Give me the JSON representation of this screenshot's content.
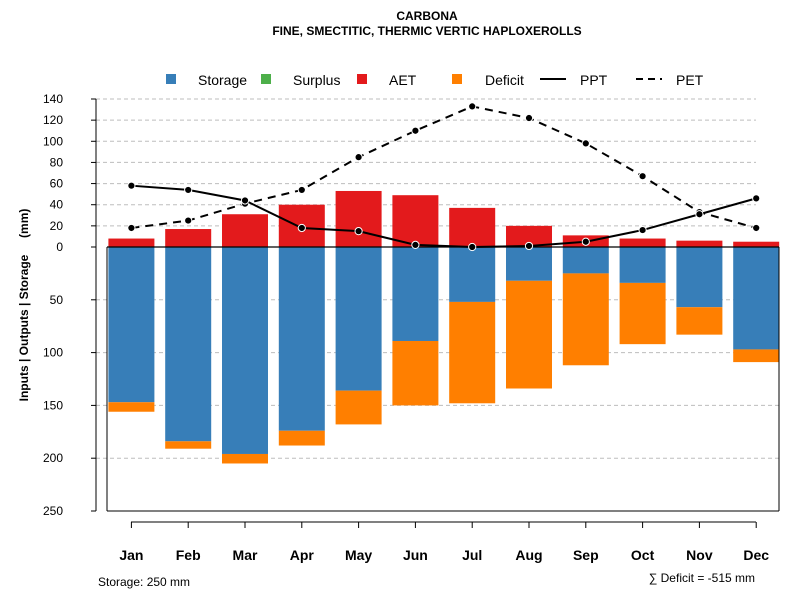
{
  "chart_data": {
    "type": "bar",
    "title": "CARBONA",
    "subtitle": "FINE, SMECTITIC, THERMIC VERTIC HAPLOXEROLLS",
    "ylabel": "Inputs | Outputs | Storage     (mm)",
    "categories": [
      "Jan",
      "Feb",
      "Mar",
      "Apr",
      "May",
      "Jun",
      "Jul",
      "Aug",
      "Sep",
      "Oct",
      "Nov",
      "Dec"
    ],
    "upper_ticks": [
      "140",
      "120",
      "100",
      "80",
      "60",
      "40",
      "20",
      "0"
    ],
    "lower_ticks": [
      "50",
      "100",
      "150",
      "200",
      "250"
    ],
    "ylim_upper": [
      0,
      140
    ],
    "ylim_lower": [
      0,
      250
    ],
    "legend": {
      "storage": "Storage",
      "surplus": "Surplus",
      "aet": "AET",
      "deficit": "Deficit",
      "ppt": "PPT",
      "pet": "PET"
    },
    "series": [
      {
        "name": "AET",
        "color": "#e31a1c",
        "values": [
          8,
          17,
          31,
          40,
          53,
          49,
          37,
          20,
          11,
          8,
          6,
          5
        ]
      },
      {
        "name": "Storage",
        "color": "#377eb8",
        "values": [
          147,
          184,
          196,
          174,
          136,
          89,
          52,
          32,
          25,
          34,
          57,
          97
        ]
      },
      {
        "name": "Deficit",
        "color": "#ff7f00",
        "values": [
          9,
          7,
          9,
          14,
          32,
          61,
          96,
          102,
          87,
          58,
          26,
          12
        ]
      },
      {
        "name": "Surplus",
        "color": "#4daf4a",
        "values": [
          0,
          0,
          0,
          0,
          0,
          0,
          0,
          0,
          0,
          0,
          0,
          0
        ]
      },
      {
        "name": "PPT",
        "values": [
          58,
          54,
          44,
          18,
          15,
          2,
          0,
          1,
          5,
          16,
          31,
          46
        ]
      },
      {
        "name": "PET",
        "values": [
          18,
          25,
          41,
          54,
          85,
          110,
          133,
          122,
          98,
          67,
          33,
          18
        ]
      }
    ],
    "storage_note": "Storage: 250 mm",
    "deficit_note": "∑ Deficit = -515 mm"
  }
}
